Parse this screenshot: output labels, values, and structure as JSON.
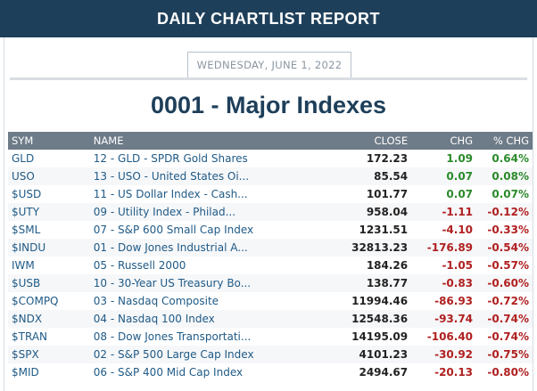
{
  "header": {
    "title": "DAILY CHARTLIST REPORT"
  },
  "report": {
    "date": "WEDNESDAY, JUNE 1, 2022",
    "title": "0001 - Major Indexes"
  },
  "table": {
    "columns": {
      "sym": "SYM",
      "name": "NAME",
      "close": "CLOSE",
      "chg": "CHG",
      "pct": "% CHG"
    },
    "rows": [
      {
        "sym": "GLD",
        "name": "12 - GLD - SPDR Gold Shares",
        "close": "172.23",
        "chg": "1.09",
        "pct": "0.64%",
        "dir": "pos"
      },
      {
        "sym": "USO",
        "name": "13 - USO - United States Oi...",
        "close": "85.54",
        "chg": "0.07",
        "pct": "0.08%",
        "dir": "pos"
      },
      {
        "sym": "$USD",
        "name": "11 - US Dollar Index - Cash...",
        "close": "101.77",
        "chg": "0.07",
        "pct": "0.07%",
        "dir": "pos"
      },
      {
        "sym": "$UTY",
        "name": "09 - Utility Index - Philad...",
        "close": "958.04",
        "chg": "-1.11",
        "pct": "-0.12%",
        "dir": "neg"
      },
      {
        "sym": "$SML",
        "name": "07 - S&P 600 Small Cap Index",
        "close": "1231.51",
        "chg": "-4.10",
        "pct": "-0.33%",
        "dir": "neg"
      },
      {
        "sym": "$INDU",
        "name": "01 - Dow Jones Industrial A...",
        "close": "32813.23",
        "chg": "-176.89",
        "pct": "-0.54%",
        "dir": "neg"
      },
      {
        "sym": "IWM",
        "name": "05 - Russell 2000",
        "close": "184.26",
        "chg": "-1.05",
        "pct": "-0.57%",
        "dir": "neg"
      },
      {
        "sym": "$USB",
        "name": "10 - 30-Year US Treasury Bo...",
        "close": "138.77",
        "chg": "-0.83",
        "pct": "-0.60%",
        "dir": "neg"
      },
      {
        "sym": "$COMPQ",
        "name": "03 - Nasdaq Composite",
        "close": "11994.46",
        "chg": "-86.93",
        "pct": "-0.72%",
        "dir": "neg"
      },
      {
        "sym": "$NDX",
        "name": "04 - Nasdaq 100 Index",
        "close": "12548.36",
        "chg": "-93.74",
        "pct": "-0.74%",
        "dir": "neg"
      },
      {
        "sym": "$TRAN",
        "name": "08 - Dow Jones Transportati...",
        "close": "14195.09",
        "chg": "-106.40",
        "pct": "-0.74%",
        "dir": "neg"
      },
      {
        "sym": "$SPX",
        "name": "02 - S&P 500 Large Cap Index",
        "close": "4101.23",
        "chg": "-30.92",
        "pct": "-0.75%",
        "dir": "neg"
      },
      {
        "sym": "$MID",
        "name": "06 - S&P 400 Mid Cap Index",
        "close": "2494.67",
        "chg": "-20.13",
        "pct": "-0.80%",
        "dir": "neg"
      }
    ]
  }
}
